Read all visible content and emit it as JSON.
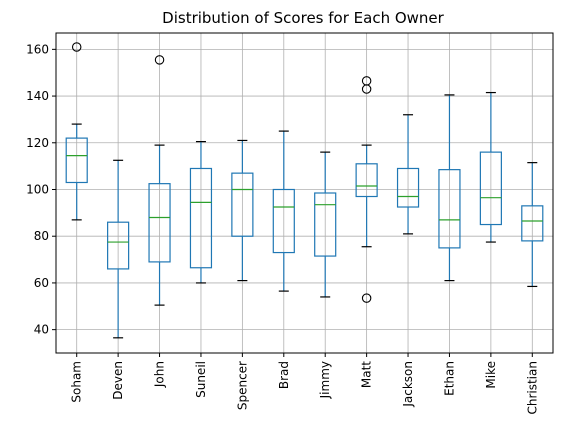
{
  "chart_data": {
    "type": "boxplot",
    "title": "Distribution of Scores for Each Owner",
    "xlabel": "",
    "ylabel": "",
    "ylim": [
      30,
      167
    ],
    "yticks": [
      40,
      60,
      80,
      100,
      120,
      140,
      160
    ],
    "grid": true,
    "colors": {
      "box": "#1f77b4",
      "median": "#2ca02c",
      "cap": "#000000",
      "grid": "#b0b0b0"
    },
    "categories": [
      "Soham",
      "Deven",
      "John",
      "Suneil",
      "Spencer",
      "Brad",
      "Jimmy",
      "Matt",
      "Jackson",
      "Ethan",
      "Mike",
      "Christian"
    ],
    "boxes": [
      {
        "label": "Soham",
        "min": 87,
        "q1": 103,
        "median": 114.5,
        "q3": 122,
        "max": 128,
        "outliers": [
          161
        ]
      },
      {
        "label": "Deven",
        "min": 36.5,
        "q1": 66,
        "median": 77.5,
        "q3": 86,
        "max": 112.5,
        "outliers": []
      },
      {
        "label": "John",
        "min": 50.5,
        "q1": 69,
        "median": 88,
        "q3": 102.5,
        "max": 119,
        "outliers": [
          155.5
        ]
      },
      {
        "label": "Suneil",
        "min": 60,
        "q1": 66.5,
        "median": 94.5,
        "q3": 109,
        "max": 120.5,
        "outliers": []
      },
      {
        "label": "Spencer",
        "min": 61,
        "q1": 80,
        "median": 100,
        "q3": 107,
        "max": 121,
        "outliers": []
      },
      {
        "label": "Brad",
        "min": 56.5,
        "q1": 73,
        "median": 92.5,
        "q3": 100,
        "max": 125,
        "outliers": []
      },
      {
        "label": "Jimmy",
        "min": 54,
        "q1": 71.5,
        "median": 93.5,
        "q3": 98.5,
        "max": 116,
        "outliers": []
      },
      {
        "label": "Matt",
        "min": 75.5,
        "q1": 97,
        "median": 101.5,
        "q3": 111,
        "max": 119,
        "outliers": [
          146.5,
          143,
          53.5
        ]
      },
      {
        "label": "Jackson",
        "min": 81,
        "q1": 92.5,
        "median": 97,
        "q3": 109,
        "max": 132,
        "outliers": []
      },
      {
        "label": "Ethan",
        "min": 61,
        "q1": 75,
        "median": 87,
        "q3": 108.5,
        "max": 140.5,
        "outliers": []
      },
      {
        "label": "Mike",
        "min": 77.5,
        "q1": 85,
        "median": 96.5,
        "q3": 116,
        "max": 141.5,
        "outliers": []
      },
      {
        "label": "Christian",
        "min": 58.5,
        "q1": 78,
        "median": 86.5,
        "q3": 93,
        "max": 111.5,
        "outliers": []
      }
    ]
  }
}
